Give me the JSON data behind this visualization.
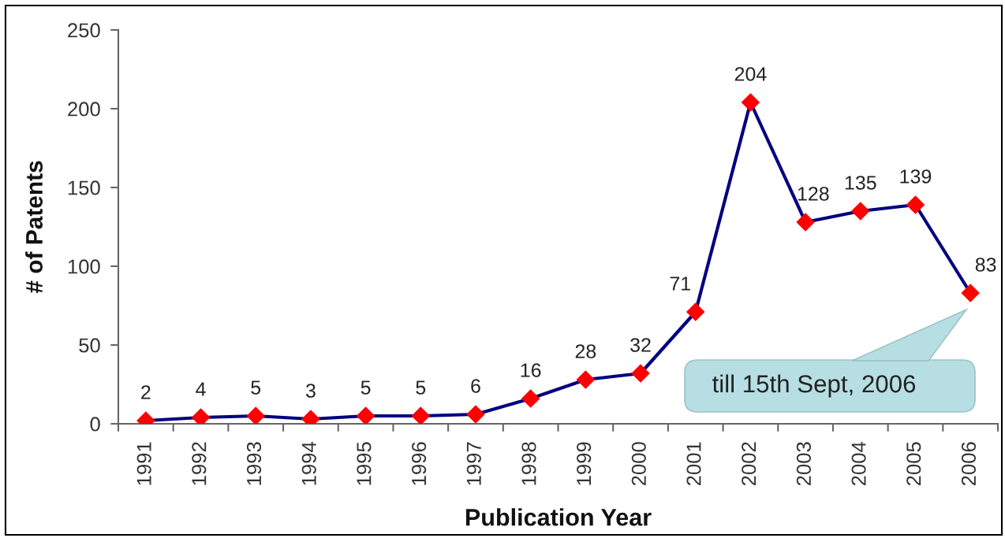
{
  "chart_data": {
    "type": "line",
    "xlabel": "Publication Year",
    "ylabel": "# of Patents",
    "categories": [
      "1991",
      "1992",
      "1993",
      "1994",
      "1995",
      "1996",
      "1997",
      "1998",
      "1999",
      "2000",
      "2001",
      "2002",
      "2003",
      "2004",
      "2005",
      "2006"
    ],
    "series": [
      {
        "color": "#000080",
        "colors": [
          "#ff0000",
          "#ff0000",
          "#ff0000",
          "#ff0000",
          "#ff0000",
          "#ff0000",
          "#ff0000",
          "#ff0000",
          "#ff0000",
          "#ff0000",
          "#ff0000",
          "#ff0000",
          "#ff0000",
          "#ff0000",
          "#ff0000",
          "#ff0000"
        ],
        "values": [
          2,
          4,
          5,
          3,
          5,
          5,
          6,
          16,
          28,
          32,
          71,
          204,
          128,
          135,
          139,
          83
        ]
      }
    ],
    "marker": "diamond",
    "line_style": "solid",
    "ylim": [
      0,
      250
    ],
    "yticks": [
      0,
      50,
      100,
      150,
      200,
      250
    ],
    "grid": false,
    "legend": false,
    "data_labels": true,
    "annotations": [
      "till 15th Sept, 2006"
    ]
  }
}
